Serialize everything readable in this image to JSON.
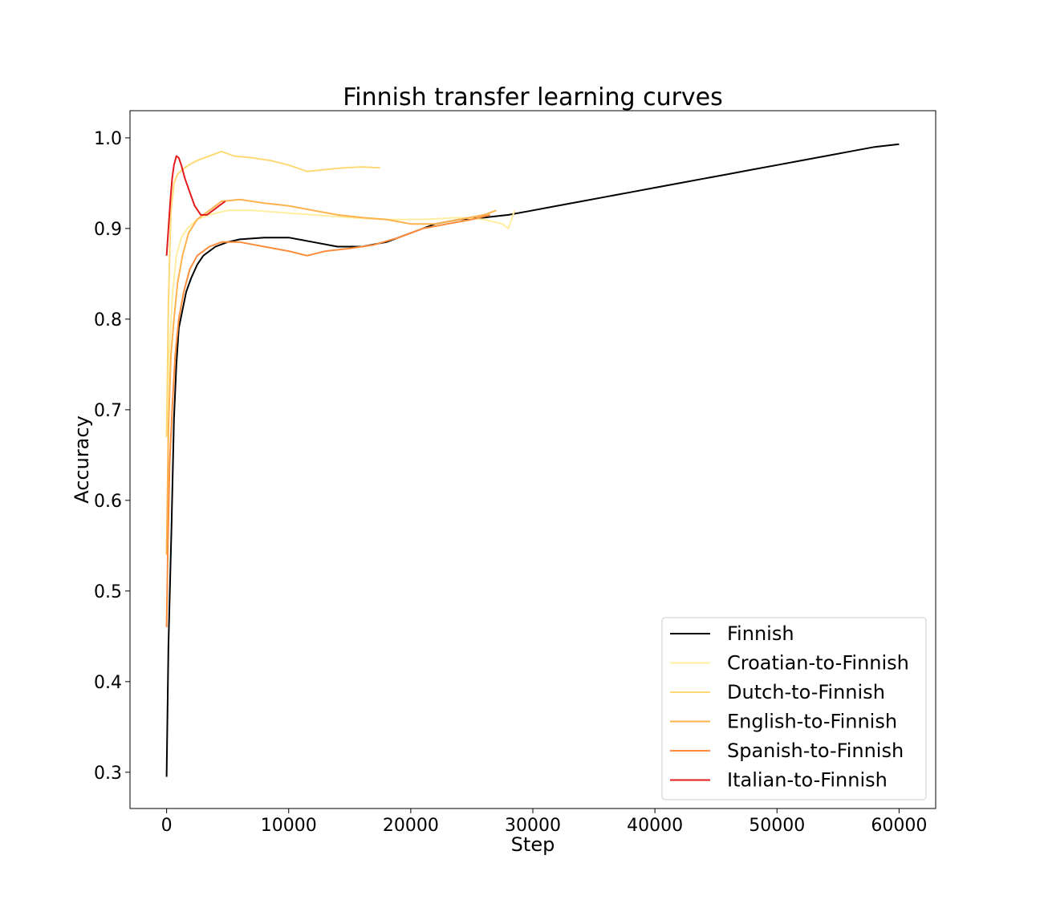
{
  "chart_data": {
    "type": "line",
    "title": "Finnish transfer learning curves",
    "xlabel": "Step",
    "ylabel": "Accuracy",
    "xlim": [
      -3000,
      63000
    ],
    "ylim": [
      0.26,
      1.03
    ],
    "xticks": [
      0,
      10000,
      20000,
      30000,
      40000,
      50000,
      60000
    ],
    "yticks": [
      0.3,
      0.4,
      0.5,
      0.6,
      0.7,
      0.8,
      0.9,
      1.0
    ],
    "ytick_labels": [
      "0.3",
      "0.4",
      "0.5",
      "0.6",
      "0.7",
      "0.8",
      "0.9",
      "1.0"
    ],
    "grid": false,
    "legend_position": "bottom-right",
    "series": [
      {
        "name": "Finnish",
        "color": "#000000",
        "x": [
          0,
          150,
          400,
          600,
          800,
          1000,
          1300,
          1600,
          2000,
          2500,
          3000,
          4000,
          5000,
          6000,
          8000,
          10000,
          12000,
          14000,
          16000,
          18000,
          20000,
          22000,
          24000,
          26000,
          28000,
          30000,
          32000,
          34000,
          36000,
          38000,
          40000,
          42000,
          44000,
          46000,
          48000,
          50000,
          52000,
          54000,
          56000,
          58000,
          60000
        ],
        "y": [
          0.295,
          0.44,
          0.57,
          0.69,
          0.75,
          0.79,
          0.81,
          0.83,
          0.845,
          0.86,
          0.87,
          0.88,
          0.885,
          0.888,
          0.89,
          0.89,
          0.885,
          0.88,
          0.88,
          0.885,
          0.895,
          0.905,
          0.91,
          0.912,
          0.915,
          0.92,
          0.925,
          0.93,
          0.935,
          0.94,
          0.945,
          0.95,
          0.955,
          0.96,
          0.965,
          0.97,
          0.975,
          0.98,
          0.985,
          0.99,
          0.993
        ]
      },
      {
        "name": "Croatian-to-Finnish",
        "color": "#ffeda0",
        "x": [
          0,
          200,
          500,
          800,
          1200,
          1700,
          2500,
          3500,
          5000,
          7000,
          9000,
          12000,
          15000,
          18000,
          21000,
          24000,
          26000,
          27500,
          28000,
          28500
        ],
        "y": [
          0.67,
          0.76,
          0.83,
          0.87,
          0.89,
          0.9,
          0.91,
          0.915,
          0.92,
          0.92,
          0.918,
          0.915,
          0.912,
          0.91,
          0.91,
          0.912,
          0.91,
          0.905,
          0.9,
          0.92
        ]
      },
      {
        "name": "Dutch-to-Finnish",
        "color": "#fed976",
        "x": [
          0,
          150,
          350,
          600,
          900,
          1300,
          1800,
          2500,
          3500,
          4500,
          5500,
          7000,
          8500,
          10000,
          11500,
          13000,
          14500,
          16000,
          17500
        ],
        "y": [
          0.67,
          0.82,
          0.92,
          0.95,
          0.96,
          0.965,
          0.97,
          0.975,
          0.98,
          0.985,
          0.98,
          0.978,
          0.975,
          0.97,
          0.963,
          0.965,
          0.967,
          0.968,
          0.967
        ]
      },
      {
        "name": "English-to-Finnish",
        "color": "#feb24c",
        "x": [
          0,
          150,
          350,
          600,
          900,
          1300,
          1800,
          2500,
          3500,
          4500,
          6000,
          8000,
          10000,
          12000,
          14000,
          16000,
          18000,
          20000,
          22000,
          24000,
          26000,
          27000
        ],
        "y": [
          0.54,
          0.68,
          0.76,
          0.8,
          0.84,
          0.87,
          0.895,
          0.91,
          0.92,
          0.93,
          0.932,
          0.928,
          0.925,
          0.92,
          0.915,
          0.912,
          0.91,
          0.905,
          0.905,
          0.91,
          0.915,
          0.92
        ]
      },
      {
        "name": "Spanish-to-Finnish",
        "color": "#fd8d3c",
        "x": [
          0,
          100,
          250,
          450,
          700,
          1000,
          1400,
          1900,
          2500,
          3500,
          4500,
          6000,
          8000,
          10000,
          11500,
          13000,
          15000,
          17000,
          19000,
          21000,
          23000,
          25000,
          26500
        ],
        "y": [
          0.46,
          0.55,
          0.64,
          0.7,
          0.76,
          0.8,
          0.83,
          0.855,
          0.87,
          0.88,
          0.885,
          0.885,
          0.88,
          0.875,
          0.87,
          0.875,
          0.878,
          0.882,
          0.89,
          0.9,
          0.905,
          0.91,
          0.915
        ]
      },
      {
        "name": "Italian-to-Finnish",
        "color": "#e31a1c",
        "x": [
          0,
          150,
          300,
          450,
          600,
          800,
          1000,
          1200,
          1500,
          1900,
          2300,
          2800,
          3300,
          3800,
          4300,
          4800
        ],
        "y": [
          0.87,
          0.9,
          0.93,
          0.955,
          0.97,
          0.98,
          0.978,
          0.97,
          0.955,
          0.94,
          0.925,
          0.915,
          0.915,
          0.92,
          0.925,
          0.93
        ]
      }
    ]
  }
}
